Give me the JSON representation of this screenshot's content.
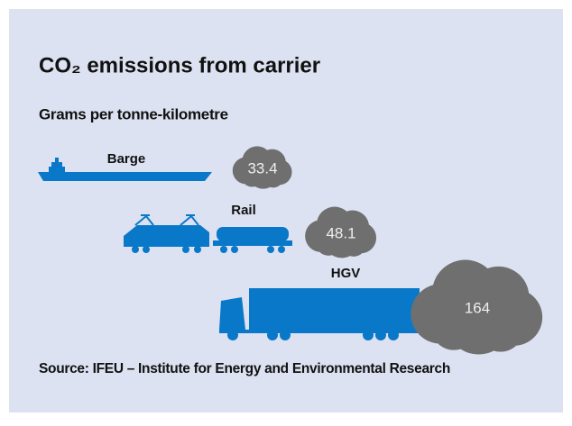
{
  "chart_data": {
    "type": "pictogram",
    "title": "CO₂ emissions from carrier",
    "subtitle": "Grams per tonne-kilometre",
    "categories": [
      "Barge",
      "Rail",
      "HGV"
    ],
    "values": [
      33.4,
      48.1,
      164
    ],
    "color": "#6f6f6f",
    "source": "Source: IFEU – Institute for Energy and Environmental Research"
  }
}
